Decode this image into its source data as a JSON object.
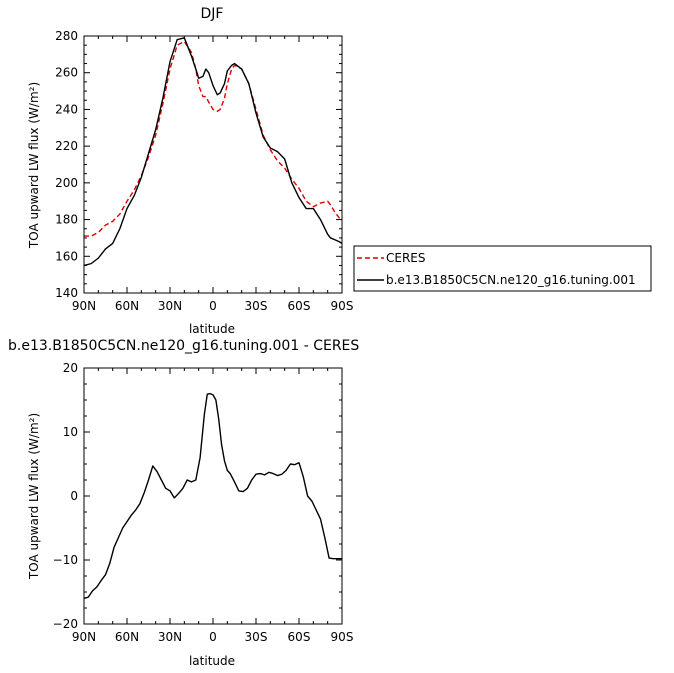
{
  "chart_data": [
    {
      "type": "line",
      "title": "DJF",
      "xlabel": "latitude",
      "ylabel": "TOA upward LW flux (W/m²)",
      "xlim": [
        -90,
        90
      ],
      "ylim": [
        140,
        280
      ],
      "x_ticks": [
        -90,
        -60,
        -30,
        0,
        30,
        60,
        90
      ],
      "x_tick_labels": [
        "90N",
        "60N",
        "30N",
        "0",
        "30S",
        "60S",
        "90S"
      ],
      "y_ticks": [
        140,
        160,
        180,
        200,
        220,
        240,
        260,
        280
      ],
      "y_tick_labels": [
        "140",
        "160",
        "180",
        "200",
        "220",
        "240",
        "260",
        "280"
      ],
      "legend": {
        "placement": "outside-right"
      },
      "series": [
        {
          "name": "CERES",
          "color": "#dd0000",
          "dash": "dashed",
          "x": [
            -90,
            -85,
            -80,
            -75,
            -70,
            -65,
            -60,
            -55,
            -50,
            -45,
            -40,
            -35,
            -30,
            -25,
            -20,
            -15,
            -12,
            -10,
            -7,
            -5,
            -3,
            0,
            3,
            5,
            8,
            10,
            13,
            15,
            20,
            25,
            30,
            35,
            40,
            45,
            50,
            55,
            60,
            65,
            70,
            75,
            80,
            82,
            85,
            88,
            90
          ],
          "y": [
            171,
            171,
            173,
            177,
            179,
            183,
            190,
            196,
            204,
            214,
            226,
            243,
            262,
            275,
            277,
            271,
            262,
            253,
            247,
            247,
            244,
            240,
            239,
            240,
            246,
            254,
            262,
            264,
            262,
            254,
            240,
            226,
            218,
            212,
            208,
            202,
            197,
            190,
            187,
            189,
            190,
            188,
            184,
            181,
            180
          ]
        },
        {
          "name": "b.e13.B1850C5CN.ne120_g16.tuning.001",
          "color": "#000000",
          "dash": "solid",
          "x": [
            -90,
            -85,
            -80,
            -75,
            -70,
            -65,
            -60,
            -55,
            -50,
            -45,
            -40,
            -35,
            -30,
            -25,
            -20,
            -15,
            -12,
            -10,
            -7,
            -5,
            -3,
            0,
            3,
            5,
            8,
            10,
            13,
            15,
            20,
            25,
            30,
            35,
            40,
            45,
            50,
            55,
            60,
            65,
            70,
            75,
            80,
            82,
            85,
            88,
            90
          ],
          "y": [
            155,
            156,
            159,
            164,
            167,
            175,
            186,
            193,
            203,
            216,
            229,
            246,
            266,
            278,
            279,
            269,
            262,
            257,
            258,
            262,
            260,
            253,
            248,
            249,
            254,
            261,
            264,
            265,
            262,
            254,
            238,
            225,
            219,
            217,
            213,
            200,
            192,
            186,
            186,
            180,
            172,
            170,
            169,
            168,
            167
          ]
        }
      ]
    },
    {
      "type": "line",
      "title": "b.e13.B1850C5CN.ne120_g16.tuning.001  -  CERES",
      "xlabel": "latitude",
      "ylabel": "TOA upward LW flux (W/m²)",
      "xlim": [
        -90,
        90
      ],
      "ylim": [
        -20,
        20
      ],
      "x_ticks": [
        -90,
        -60,
        -30,
        0,
        30,
        60,
        90
      ],
      "x_tick_labels": [
        "90N",
        "60N",
        "30N",
        "0",
        "30S",
        "60S",
        "90S"
      ],
      "y_ticks": [
        -20,
        -10,
        0,
        10,
        20
      ],
      "y_tick_labels": [
        "−20",
        "−10",
        "0",
        "10",
        "20"
      ],
      "series": [
        {
          "color": "#000000",
          "dash": "solid",
          "x": [
            -90,
            -87,
            -84,
            -81,
            -78,
            -75,
            -72,
            -69,
            -66,
            -63,
            -60,
            -57,
            -54,
            -51,
            -48,
            -45,
            -42,
            -39,
            -36,
            -33,
            -30,
            -27,
            -24,
            -21,
            -18,
            -15,
            -12,
            -9,
            -6,
            -4,
            -2,
            0,
            2,
            4,
            6,
            8,
            10,
            12,
            15,
            18,
            21,
            24,
            27,
            30,
            33,
            36,
            39,
            42,
            45,
            48,
            51,
            54,
            57,
            60,
            63,
            66,
            69,
            72,
            75,
            78,
            81,
            84,
            87,
            90
          ],
          "y": [
            -16,
            -15.8,
            -14.8,
            -14.2,
            -13.2,
            -12.3,
            -10.5,
            -8,
            -6.5,
            -5,
            -4,
            -3,
            -2.2,
            -1.2,
            0.5,
            2.5,
            4.7,
            3.8,
            2.5,
            1.2,
            0.8,
            -0.3,
            0.4,
            1.2,
            2.5,
            2.2,
            2.5,
            6,
            12.8,
            15.9,
            16,
            15.8,
            15,
            12,
            8,
            5.5,
            4,
            3.5,
            2.2,
            0.8,
            0.7,
            1.2,
            2.5,
            3.4,
            3.5,
            3.3,
            3.7,
            3.5,
            3.2,
            3.4,
            4,
            5,
            4.9,
            5.2,
            3,
            0,
            -0.8,
            -2.2,
            -3.6,
            -6.5,
            -9.7,
            -9.8,
            -9.8,
            -9.8
          ]
        }
      ]
    }
  ]
}
